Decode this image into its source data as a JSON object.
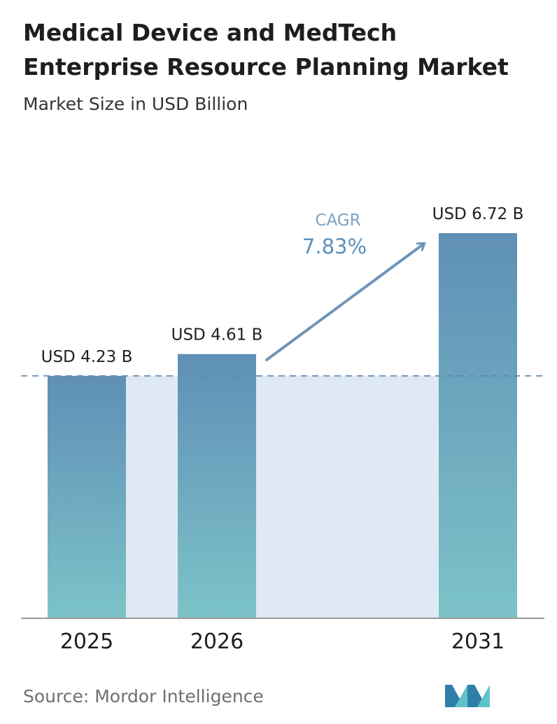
{
  "title_line1": "Medical Device and MedTech",
  "title_line2": "Enterprise Resource Planning Market",
  "subtitle": "Market Size in USD Billion",
  "source": "Source: Mordor Intelligence",
  "cagr": {
    "label": "CAGR",
    "value": "7.83%"
  },
  "colors": {
    "bar_top": "#5f8fb6",
    "bar_bottom": "#7cc3c8",
    "band": "#dfe9f3",
    "arrow": "#6d95b8",
    "dashed": "#5f86ad",
    "logo_a": "#2e7fa8",
    "logo_b": "#5ec3c9"
  },
  "logo": {
    "name": "mordor-intelligence-logo"
  },
  "chart_data": {
    "type": "bar",
    "categories": [
      "2025",
      "2026",
      "2031"
    ],
    "values": [
      4.23,
      4.61,
      6.72
    ],
    "value_labels": [
      "USD 4.23 B",
      "USD 4.61 B",
      "USD 6.72 B"
    ],
    "title": "Medical Device and MedTech Enterprise Resource Planning Market",
    "subtitle": "Market Size in USD Billion",
    "xlabel": "",
    "ylabel": "",
    "ylim": [
      0,
      6.72
    ],
    "grid": false,
    "reference_line": 4.23
  }
}
